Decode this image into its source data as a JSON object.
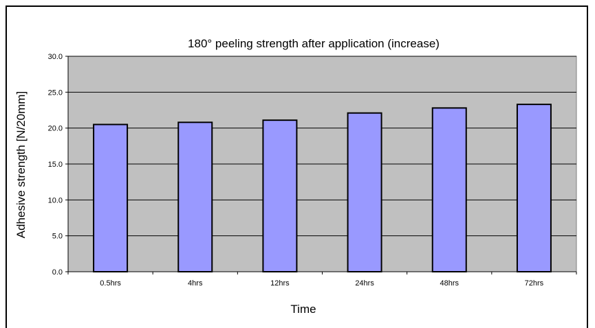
{
  "chart_data": {
    "type": "bar",
    "title": "180° peeling strength after application (increase)",
    "xlabel": "Time",
    "ylabel": "Adhesive strength [N/20mm]",
    "categories": [
      "0.5hrs",
      "4hrs",
      "12hrs",
      "24hrs",
      "48hrs",
      "72hrs"
    ],
    "values": [
      20.5,
      20.8,
      21.1,
      22.1,
      22.8,
      23.3
    ],
    "ylim": [
      0,
      30
    ],
    "yticks": [
      "0.0",
      "5.0",
      "10.0",
      "15.0",
      "20.0",
      "25.0",
      "30.0"
    ],
    "grid": true,
    "legend": "none",
    "colors": {
      "plot_background": "#c0c0c0",
      "bar_fill": "#9999ff",
      "bar_stroke": "#000000",
      "grid": "#000000"
    }
  }
}
